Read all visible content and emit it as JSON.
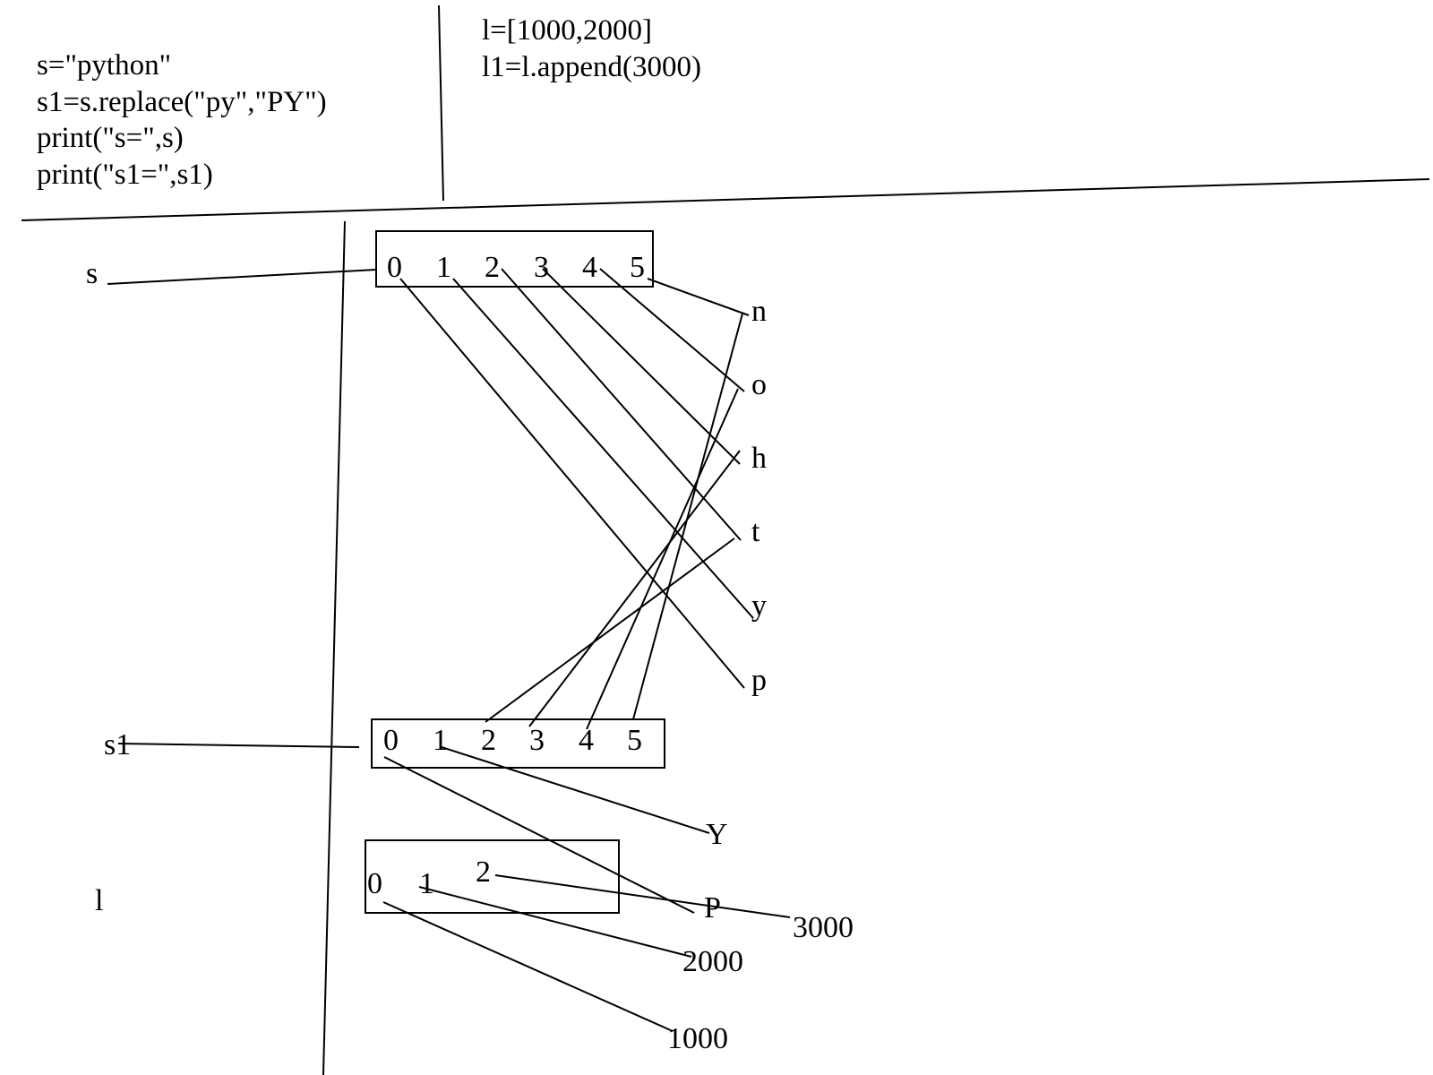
{
  "code_left": [
    "s=\"python\"",
    "s1=s.replace(\"py\",\"PY\")",
    "print(\"s=\",s)",
    "print(\"s1=\",s1)"
  ],
  "code_right": [
    "l=[1000,2000]",
    "l1=l.append(3000)"
  ],
  "variables": {
    "s": "s",
    "s1": "s1",
    "l": "l"
  },
  "s_box": {
    "indices": [
      "0",
      "1",
      "2",
      "3",
      "4",
      "5"
    ]
  },
  "s_chars": [
    "n",
    "o",
    "h",
    "t",
    "y",
    "p"
  ],
  "s1_box": {
    "indices": [
      "0",
      "1",
      "2",
      "3",
      "4",
      "5"
    ]
  },
  "s1_chars": [
    "Y",
    "P"
  ],
  "l_box": {
    "indices": [
      "0",
      "1",
      "2"
    ]
  },
  "l_values": [
    "3000",
    "2000",
    "1000"
  ]
}
